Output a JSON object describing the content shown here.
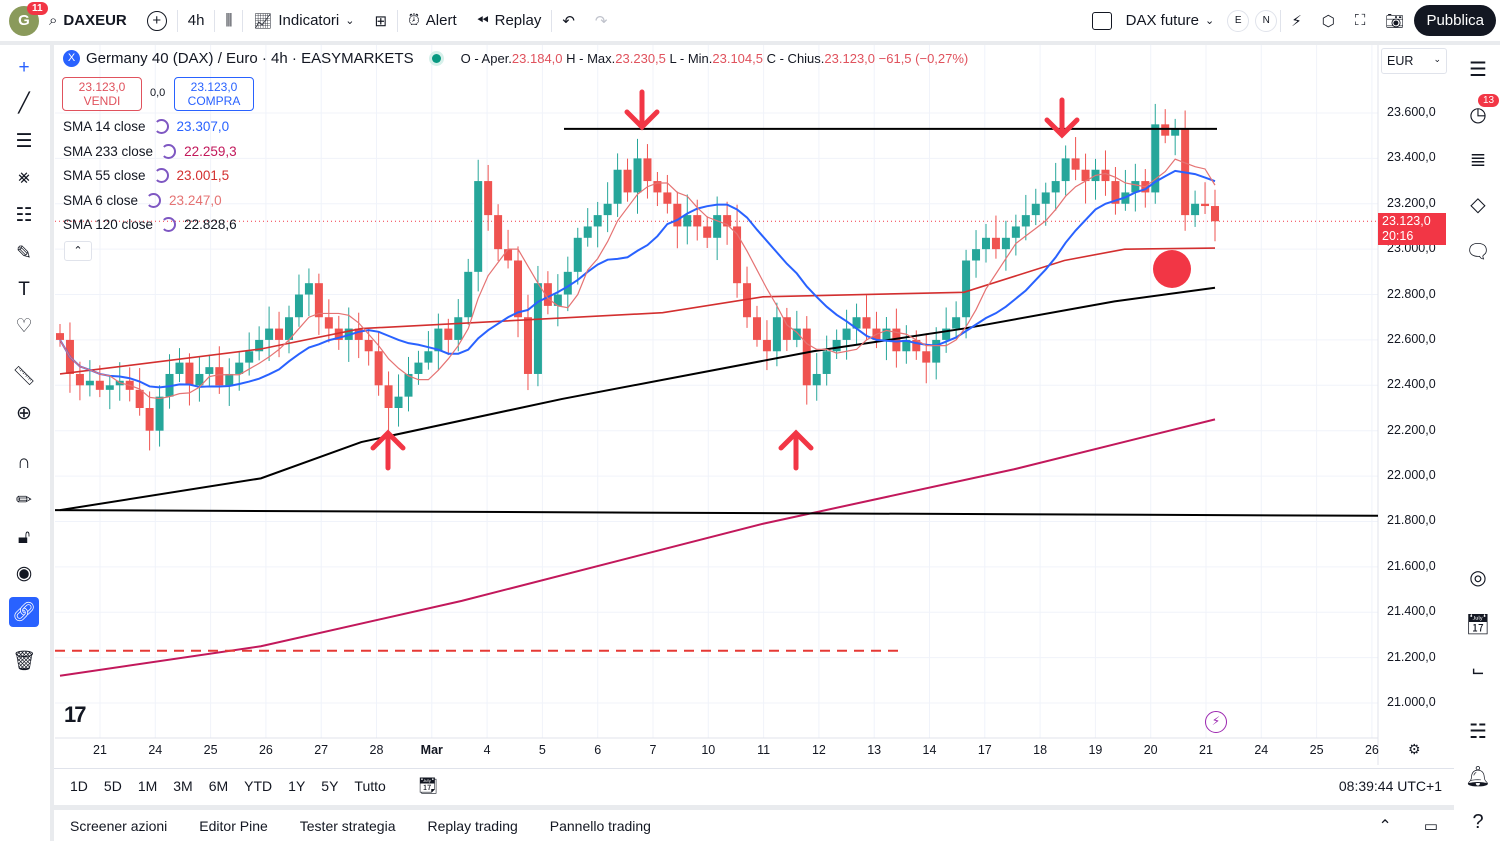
{
  "topbar": {
    "avatar": "G",
    "notif": "11",
    "symbol": "DAXEUR",
    "interval": "4h",
    "indicators": "Indicatori",
    "alert": "Alert",
    "replay": "Replay",
    "layout_name": "DAX future",
    "e": "E",
    "n": "N",
    "publish": "Pubblica"
  },
  "legend": {
    "title": "Germany 40 (DAX) / Euro · 4h · EASYMARKETS",
    "o_label": "O - Aper.",
    "o": "23.184,0",
    "h_label": "H - Max.",
    "h": "23.230,5",
    "l_label": "L - Min.",
    "l": "23.104,5",
    "c_label": "C - Chius.",
    "c": "23.123,0",
    "chg": "−61,5 (−0,27%)"
  },
  "trade": {
    "sell_price": "23.123,0",
    "sell_label": "VENDI",
    "spread": "0,0",
    "buy_price": "23.123,0",
    "buy_label": "COMPRA"
  },
  "indicators": [
    {
      "name": "SMA 14 close",
      "value": "23.307,0",
      "color": "#2962ff"
    },
    {
      "name": "SMA 233 close",
      "value": "22.259,3",
      "color": "#c2185b"
    },
    {
      "name": "SMA 55 close",
      "value": "23.001,5",
      "color": "#d32f2f"
    },
    {
      "name": "SMA 6 close",
      "value": "23.247,0",
      "color": "#e57373"
    },
    {
      "name": "SMA 120 close",
      "value": "22.828,6",
      "color": "#000000"
    }
  ],
  "currency": "EUR",
  "price_axis": [
    "23.600,0",
    "23.400,0",
    "23.200,0",
    "23.000,0",
    "22.800,0",
    "22.600,0",
    "22.400,0",
    "22.200,0",
    "22.000,0",
    "21.800,0",
    "21.600,0",
    "21.400,0",
    "21.200,0",
    "21.000,0"
  ],
  "price_axis_values": [
    23600,
    23400,
    23200,
    23000,
    22800,
    22600,
    22400,
    22200,
    22000,
    21800,
    21600,
    21400,
    21200,
    21000
  ],
  "last_price": {
    "value": "23.123,0",
    "countdown": "20:16",
    "price": 23123
  },
  "date_axis": [
    "21",
    "24",
    "25",
    "26",
    "27",
    "28",
    "Mar",
    "4",
    "5",
    "6",
    "7",
    "10",
    "11",
    "12",
    "13",
    "14",
    "17",
    "18",
    "19",
    "20",
    "21",
    "24",
    "25",
    "26"
  ],
  "ranges": [
    "1D",
    "5D",
    "1M",
    "3M",
    "6M",
    "YTD",
    "1Y",
    "5Y",
    "Tutto"
  ],
  "clock": "08:39:44 UTC+1",
  "panel_tabs": [
    "Screener azioni",
    "Editor Pine",
    "Tester strategia",
    "Replay trading",
    "Pannello trading"
  ],
  "right_badge": "13",
  "colors": {
    "up": "#26a69a",
    "down": "#ef5350",
    "accent": "#2962ff",
    "mark": "#f23645"
  },
  "chart_data": {
    "type": "candlestick",
    "closes": [
      22600,
      22450,
      22400,
      22420,
      22380,
      22400,
      22420,
      22380,
      22300,
      22200,
      22350,
      22450,
      22500,
      22400,
      22450,
      22480,
      22400,
      22450,
      22500,
      22550,
      22600,
      22650,
      22600,
      22700,
      22800,
      22850,
      22700,
      22650,
      22600,
      22650,
      22600,
      22550,
      22400,
      22300,
      22350,
      22450,
      22500,
      22550,
      22650,
      22600,
      22700,
      22900,
      23300,
      23150,
      23000,
      22950,
      22700,
      22450,
      22850,
      22750,
      22800,
      22900,
      23050,
      23100,
      23150,
      23200,
      23350,
      23250,
      23400,
      23300,
      23250,
      23200,
      23100,
      23150,
      23100,
      23050,
      23150,
      23100,
      22850,
      22700,
      22600,
      22550,
      22700,
      22600,
      22650,
      22400,
      22450,
      22550,
      22600,
      22650,
      22700,
      22650,
      22600,
      22650,
      22550,
      22600,
      22550,
      22500,
      22600,
      22650,
      22700,
      22950,
      23000,
      23050,
      23000,
      23050,
      23100,
      23150,
      23200,
      23250,
      23300,
      23400,
      23350,
      23300,
      23350,
      23300,
      23200,
      23250,
      23300,
      23250,
      23550,
      23500,
      23530,
      23150,
      23200,
      23190,
      23123
    ],
    "sma55": [
      [
        0,
        22450
      ],
      [
        20,
        22560
      ],
      [
        30,
        22650
      ],
      [
        60,
        22720
      ],
      [
        70,
        22790
      ],
      [
        90,
        22810
      ],
      [
        100,
        22950
      ],
      [
        106,
        23000
      ],
      [
        115,
        23005
      ]
    ],
    "sma120": [
      [
        0,
        21850
      ],
      [
        20,
        21990
      ],
      [
        30,
        22150
      ],
      [
        50,
        22340
      ],
      [
        75,
        22550
      ],
      [
        90,
        22650
      ],
      [
        105,
        22770
      ],
      [
        115,
        22830
      ]
    ],
    "sma233": [
      [
        0,
        21120
      ],
      [
        20,
        21250
      ],
      [
        40,
        21450
      ],
      [
        70,
        21790
      ],
      [
        95,
        22030
      ],
      [
        115,
        22250
      ]
    ],
    "resistance": 23530,
    "support_line": [
      21850,
      21825
    ],
    "dashed_level": 21230
  }
}
